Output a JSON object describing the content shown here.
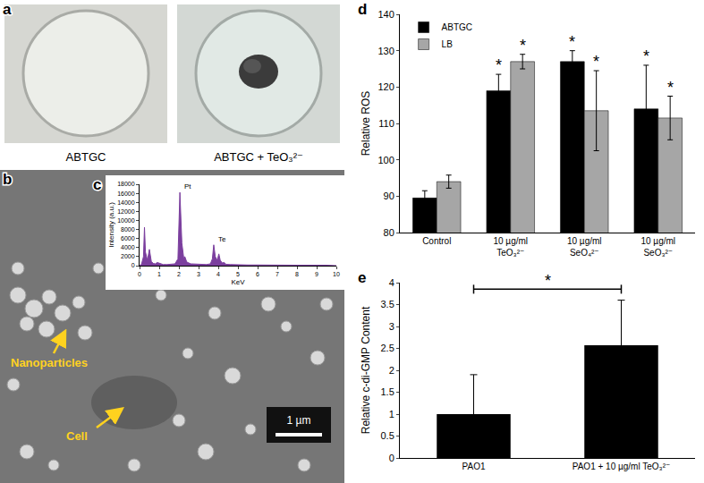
{
  "photos": {
    "a": {
      "label": "a",
      "captions": [
        "ABTGC",
        "ABTGC + TeO₃²⁻"
      ]
    },
    "b": {
      "label": "b",
      "arrows": [
        "Nanoparticles",
        "Cell"
      ],
      "scale_bar": "1 µm"
    }
  },
  "chart_data": [
    {
      "type": "line",
      "title": "c",
      "x_label": "KeV",
      "y_label": "Intensity (a.u.)",
      "x": [
        0,
        0.1,
        0.2,
        0.25,
        0.3,
        0.4,
        0.5,
        0.55,
        0.6,
        0.7,
        0.8,
        0.9,
        1.0,
        1.1,
        1.2,
        1.4,
        1.6,
        1.8,
        1.95,
        2.05,
        2.15,
        2.25,
        2.3,
        2.4,
        2.6,
        2.8,
        3.0,
        3.2,
        3.4,
        3.6,
        3.7,
        3.77,
        3.85,
        3.95,
        4.03,
        4.1,
        4.2,
        4.3,
        4.4,
        4.6,
        4.8,
        5.0,
        5.5,
        6.0,
        6.5,
        7.0,
        7.5,
        8.0,
        8.5,
        9.0,
        9.4,
        9.5,
        10
      ],
      "values": [
        0,
        300,
        2000,
        8500,
        3000,
        1200,
        3600,
        2000,
        900,
        500,
        400,
        700,
        500,
        300,
        250,
        250,
        300,
        400,
        1500,
        16200,
        5000,
        1500,
        2000,
        800,
        400,
        350,
        300,
        250,
        250,
        400,
        1500,
        4600,
        2000,
        1200,
        2600,
        1200,
        600,
        700,
        300,
        250,
        200,
        200,
        150,
        150,
        100,
        100,
        100,
        100,
        100,
        100,
        200,
        100,
        0
      ],
      "color": "#7b3f9e",
      "xlim": [
        0,
        10
      ],
      "xticks": [
        0,
        1,
        2,
        3,
        4,
        5,
        6,
        7,
        8,
        9,
        10
      ],
      "ylim": [
        0,
        18000
      ],
      "yticks": [
        0,
        2000,
        4000,
        6000,
        8000,
        10000,
        12000,
        14000,
        16000,
        18000
      ],
      "grid": false,
      "annotations": [
        {
          "text": "Pt",
          "x": 2.05,
          "y": 16200
        },
        {
          "text": "Te",
          "x": 3.77,
          "y": 4600
        }
      ]
    },
    {
      "type": "bar",
      "title": "d",
      "y_label": "Relative ROS",
      "categories": [
        "Control",
        "10 µg/ml\nTeO₃²⁻",
        "10 µg/ml\nSeO₄²⁻",
        "10 µg/ml\nSeO₃²⁻"
      ],
      "series": [
        {
          "name": "ABTGC",
          "color": "#000000",
          "values": [
            89.5,
            119,
            127,
            114
          ],
          "errors": [
            2,
            4.5,
            3,
            12
          ]
        },
        {
          "name": "LB",
          "color": "#a6a6a6",
          "values": [
            94,
            127,
            113.5,
            111.5
          ],
          "errors": [
            1.8,
            2,
            11,
            6
          ]
        }
      ],
      "ylim": [
        80,
        140
      ],
      "yticks": [
        80,
        90,
        100,
        110,
        120,
        130,
        140
      ],
      "grid": false,
      "legend": "top-left",
      "annotations": [
        {
          "text": "*",
          "category": 1,
          "series": "ABTGC"
        },
        {
          "text": "*",
          "category": 1,
          "series": "LB"
        },
        {
          "text": "*",
          "category": 2,
          "series": "ABTGC"
        },
        {
          "text": "*",
          "category": 2,
          "series": "LB"
        },
        {
          "text": "*",
          "category": 3,
          "series": "ABTGC"
        },
        {
          "text": "*",
          "category": 3,
          "series": "LB"
        }
      ]
    },
    {
      "type": "bar",
      "title": "e",
      "y_label": "Relative c-di-GMP Content",
      "categories": [
        "PAO1",
        "PAO1 + 10 µg/ml TeO₃²⁻"
      ],
      "values": [
        1,
        2.57
      ],
      "errors": [
        0.9,
        1.03
      ],
      "color": "#000000",
      "ylim": [
        0,
        4
      ],
      "yticks": [
        0,
        0.5,
        1,
        1.5,
        2,
        2.5,
        3,
        3.5,
        4
      ],
      "grid": false,
      "comparisons": [
        {
          "from": 0,
          "to": 1,
          "y": 3.85,
          "text": "*"
        }
      ]
    }
  ]
}
